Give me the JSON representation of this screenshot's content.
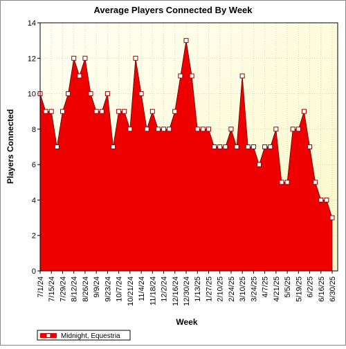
{
  "chart_data": {
    "type": "area",
    "title": "Average Players Connected By Week",
    "x_label": "Week",
    "y_label": "Players Connected",
    "categories": [
      "7/1/24",
      null,
      "7/15/24",
      null,
      "7/29/24",
      null,
      "8/12/24",
      null,
      "8/26/24",
      null,
      "9/9/24",
      null,
      "9/23/24",
      null,
      "10/7/24",
      null,
      "10/21/24",
      null,
      "11/4/24",
      null,
      "11/18/24",
      null,
      "12/2/24",
      null,
      "12/16/24",
      null,
      "12/30/24",
      null,
      "1/13/25",
      null,
      "1/27/25",
      null,
      "2/10/25",
      null,
      "2/24/25",
      null,
      "3/10/25",
      null,
      "3/24/25",
      null,
      "4/7/25",
      null,
      "4/21/25",
      null,
      "5/5/25",
      null,
      "5/19/25",
      null,
      "6/2/25",
      null,
      "6/16/25",
      null,
      "6/30/25"
    ],
    "series": [
      {
        "name": "Midnight, Equestria",
        "color": "#ee0000",
        "values": [
          10,
          9,
          9,
          7,
          9,
          10,
          12,
          11,
          12,
          10,
          9,
          9,
          10,
          7,
          9,
          9,
          8,
          12,
          10,
          8,
          9,
          8,
          8,
          8,
          9,
          11,
          13,
          11,
          8,
          8,
          8,
          7,
          7,
          7,
          8,
          7,
          11,
          7,
          7,
          6,
          7,
          7,
          8,
          5,
          5,
          8,
          8,
          9,
          7,
          5,
          4,
          4,
          3
        ]
      }
    ],
    "ylim": [
      0,
      14
    ],
    "yticks": [
      0,
      2,
      4,
      6,
      8,
      10,
      12,
      14
    ],
    "grid": true,
    "legend": "bottom-left"
  }
}
